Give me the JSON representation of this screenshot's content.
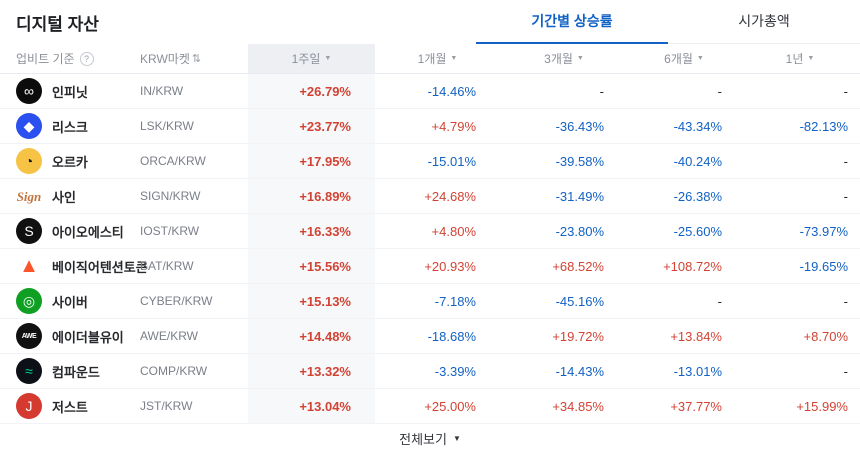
{
  "colors": {
    "positive": "#d24334",
    "negative": "#1261c4",
    "accent": "#1261c4"
  },
  "icons": {
    "help": "?",
    "sort": "⇅",
    "caret_down": "▼"
  },
  "header": {
    "title": "디지털 자산",
    "tabs": [
      {
        "label": "기간별 상승률",
        "active": true
      },
      {
        "label": "시가총액",
        "active": false
      }
    ]
  },
  "table": {
    "columns": {
      "name_header": "업비트 기준",
      "market_header": "KRW마켓",
      "periods": [
        "1주일",
        "1개월",
        "3개월",
        "6개월",
        "1년"
      ]
    },
    "rows": [
      {
        "name": "인피닛",
        "market": "IN/KRW",
        "icon": {
          "bg": "#0c0c0c",
          "fg": "#ffffff",
          "glyph": "∞"
        },
        "values": [
          "+26.79%",
          "-14.46%",
          "-",
          "-",
          "-"
        ]
      },
      {
        "name": "리스크",
        "market": "LSK/KRW",
        "icon": {
          "bg": "#2b50f0",
          "fg": "#ffffff",
          "glyph": "◆"
        },
        "values": [
          "+23.77%",
          "+4.79%",
          "-36.43%",
          "-43.34%",
          "-82.13%"
        ]
      },
      {
        "name": "오르카",
        "market": "ORCA/KRW",
        "icon": {
          "bg": "#f6c344",
          "fg": "#141414",
          "glyph": "◔"
        },
        "values": [
          "+17.95%",
          "-15.01%",
          "-39.58%",
          "-40.24%",
          "-"
        ]
      },
      {
        "name": "사인",
        "market": "SIGN/KRW",
        "icon": {
          "bg": "transparent",
          "fg": "#c3743e",
          "glyph": "Sign",
          "style": "script"
        },
        "values": [
          "+16.89%",
          "+24.68%",
          "-31.49%",
          "-26.38%",
          "-"
        ]
      },
      {
        "name": "아이오에스티",
        "market": "IOST/KRW",
        "icon": {
          "bg": "#101010",
          "fg": "#ffffff",
          "glyph": "S"
        },
        "values": [
          "+16.33%",
          "+4.80%",
          "-23.80%",
          "-25.60%",
          "-73.97%"
        ]
      },
      {
        "name": "베이직어텐션토큰",
        "market": "BAT/KRW",
        "icon": {
          "bg": "transparent",
          "fg": "#fb542b",
          "glyph": "▲",
          "style": "triangle"
        },
        "values": [
          "+15.56%",
          "+20.93%",
          "+68.52%",
          "+108.72%",
          "-19.65%"
        ]
      },
      {
        "name": "사이버",
        "market": "CYBER/KRW",
        "icon": {
          "bg": "#0e9f23",
          "fg": "#ffffff",
          "glyph": "◎"
        },
        "values": [
          "+15.13%",
          "-7.18%",
          "-45.16%",
          "-",
          "-"
        ]
      },
      {
        "name": "에이더블유이",
        "market": "AWE/KRW",
        "icon": {
          "bg": "#111111",
          "fg": "#ffffff",
          "glyph": "AWE",
          "style": "tiny"
        },
        "values": [
          "+14.48%",
          "-18.68%",
          "+19.72%",
          "+13.84%",
          "+8.70%"
        ]
      },
      {
        "name": "컴파운드",
        "market": "COMP/KRW",
        "icon": {
          "bg": "#0d1117",
          "fg": "#00d395",
          "glyph": "≈"
        },
        "values": [
          "+13.32%",
          "-3.39%",
          "-14.43%",
          "-13.01%",
          "-"
        ]
      },
      {
        "name": "저스트",
        "market": "JST/KRW",
        "icon": {
          "bg": "#d43a2f",
          "fg": "#ffffff",
          "glyph": "J"
        },
        "values": [
          "+13.04%",
          "+25.00%",
          "+34.85%",
          "+37.77%",
          "+15.99%"
        ]
      }
    ]
  },
  "footer": {
    "view_all": "전체보기"
  }
}
